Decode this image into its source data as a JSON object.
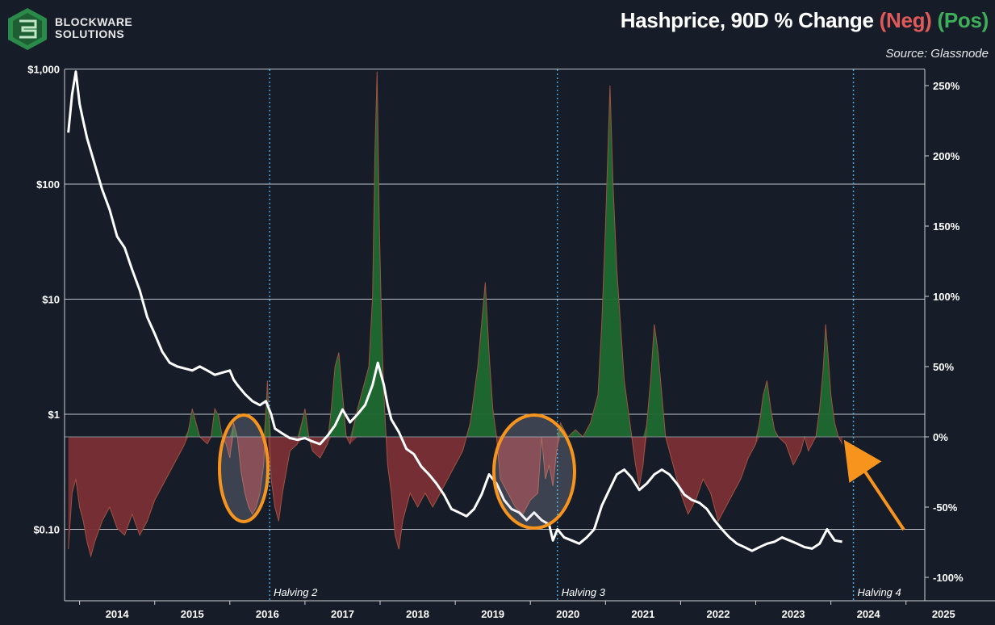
{
  "brand": {
    "line1": "BLOCKWARE",
    "line2": "SOLUTIONS",
    "logo_icon": "blockware-cube-logo-icon",
    "color": "#2a8a4a"
  },
  "header": {
    "title_main": "Hashprice, 90D % Change",
    "title_neg": "(Neg)",
    "title_pos": "(Pos)",
    "subtitle": "Source: Glassnode"
  },
  "colors": {
    "negative": "#e05a5a",
    "positive": "#3fae5a",
    "neg_fill": "#7a2f35",
    "pos_fill": "#1d6a30",
    "price_line": "#ffffff",
    "halving_line": "#3fa9e0",
    "highlight": "#f7941d",
    "background": "#161d29"
  },
  "annotations": {
    "highlight_circles": 2,
    "arrow": "orange-arrow-pointing-to-latest-value"
  },
  "chart_data": {
    "type": "area",
    "title": "Hashprice, 90D % Change (Neg) (Pos)",
    "x_labels": [
      "2014",
      "2015",
      "2016",
      "2017",
      "2018",
      "2019",
      "2020",
      "2021",
      "2022",
      "2023",
      "2024",
      "2025"
    ],
    "xlim": [
      2013.8,
      2025.25
    ],
    "left_axis": {
      "label": "",
      "scale": "log",
      "ticks": [
        "$1,000",
        "$100",
        "$10",
        "$1",
        "$0.10"
      ],
      "tick_values": [
        1000,
        100,
        10,
        1,
        0.1
      ],
      "ylim": [
        0.02,
        1050
      ]
    },
    "right_axis": {
      "label": "",
      "scale": "linear",
      "ticks": [
        "250%",
        "200%",
        "150%",
        "100%",
        "50%",
        "0%",
        "-50%",
        "-100%"
      ],
      "tick_values": [
        250,
        200,
        150,
        100,
        50,
        0,
        -50,
        -100
      ],
      "ylim": [
        -100,
        260
      ]
    },
    "grid": "horizontal",
    "halvings": [
      {
        "label": "Halving 2",
        "x": 2016.53
      },
      {
        "label": "Halving 3",
        "x": 2020.36
      },
      {
        "label": "Halving 4",
        "x": 2024.3
      }
    ],
    "series": [
      {
        "name": "Hashprice",
        "type": "line",
        "axis": "left",
        "points": [
          [
            2013.85,
            280
          ],
          [
            2013.9,
            600
          ],
          [
            2013.95,
            950
          ],
          [
            2014.0,
            500
          ],
          [
            2014.05,
            350
          ],
          [
            2014.1,
            250
          ],
          [
            2014.2,
            150
          ],
          [
            2014.3,
            90
          ],
          [
            2014.4,
            60
          ],
          [
            2014.5,
            35
          ],
          [
            2014.6,
            28
          ],
          [
            2014.7,
            18
          ],
          [
            2014.8,
            12
          ],
          [
            2014.9,
            7
          ],
          [
            2015.0,
            5
          ],
          [
            2015.1,
            3.5
          ],
          [
            2015.2,
            2.8
          ],
          [
            2015.3,
            2.6
          ],
          [
            2015.4,
            2.5
          ],
          [
            2015.5,
            2.4
          ],
          [
            2015.6,
            2.6
          ],
          [
            2015.7,
            2.4
          ],
          [
            2015.8,
            2.2
          ],
          [
            2015.9,
            2.3
          ],
          [
            2016.0,
            2.4
          ],
          [
            2016.05,
            2.0
          ],
          [
            2016.1,
            1.8
          ],
          [
            2016.2,
            1.5
          ],
          [
            2016.3,
            1.3
          ],
          [
            2016.4,
            1.2
          ],
          [
            2016.48,
            1.3
          ],
          [
            2016.55,
            1.0
          ],
          [
            2016.6,
            0.75
          ],
          [
            2016.7,
            0.68
          ],
          [
            2016.8,
            0.62
          ],
          [
            2016.9,
            0.6
          ],
          [
            2017.0,
            0.62
          ],
          [
            2017.1,
            0.58
          ],
          [
            2017.2,
            0.55
          ],
          [
            2017.3,
            0.65
          ],
          [
            2017.4,
            0.8
          ],
          [
            2017.5,
            1.1
          ],
          [
            2017.6,
            0.85
          ],
          [
            2017.7,
            1.0
          ],
          [
            2017.8,
            1.2
          ],
          [
            2017.9,
            1.8
          ],
          [
            2017.97,
            2.8
          ],
          [
            2018.05,
            1.8
          ],
          [
            2018.1,
            1.2
          ],
          [
            2018.15,
            0.9
          ],
          [
            2018.25,
            0.7
          ],
          [
            2018.35,
            0.5
          ],
          [
            2018.45,
            0.45
          ],
          [
            2018.55,
            0.35
          ],
          [
            2018.65,
            0.3
          ],
          [
            2018.75,
            0.25
          ],
          [
            2018.85,
            0.2
          ],
          [
            2018.95,
            0.15
          ],
          [
            2019.05,
            0.14
          ],
          [
            2019.15,
            0.13
          ],
          [
            2019.25,
            0.15
          ],
          [
            2019.35,
            0.2
          ],
          [
            2019.45,
            0.3
          ],
          [
            2019.55,
            0.25
          ],
          [
            2019.65,
            0.18
          ],
          [
            2019.75,
            0.15
          ],
          [
            2019.85,
            0.14
          ],
          [
            2019.95,
            0.12
          ],
          [
            2020.05,
            0.14
          ],
          [
            2020.15,
            0.12
          ],
          [
            2020.25,
            0.11
          ],
          [
            2020.3,
            0.08
          ],
          [
            2020.36,
            0.1
          ],
          [
            2020.45,
            0.085
          ],
          [
            2020.55,
            0.08
          ],
          [
            2020.65,
            0.075
          ],
          [
            2020.75,
            0.085
          ],
          [
            2020.85,
            0.1
          ],
          [
            2020.95,
            0.16
          ],
          [
            2021.05,
            0.22
          ],
          [
            2021.15,
            0.3
          ],
          [
            2021.25,
            0.33
          ],
          [
            2021.35,
            0.28
          ],
          [
            2021.45,
            0.22
          ],
          [
            2021.55,
            0.25
          ],
          [
            2021.65,
            0.3
          ],
          [
            2021.75,
            0.33
          ],
          [
            2021.85,
            0.3
          ],
          [
            2021.95,
            0.25
          ],
          [
            2022.05,
            0.2
          ],
          [
            2022.15,
            0.18
          ],
          [
            2022.25,
            0.17
          ],
          [
            2022.35,
            0.15
          ],
          [
            2022.45,
            0.12
          ],
          [
            2022.55,
            0.1
          ],
          [
            2022.65,
            0.085
          ],
          [
            2022.75,
            0.075
          ],
          [
            2022.85,
            0.07
          ],
          [
            2022.95,
            0.065
          ],
          [
            2023.05,
            0.07
          ],
          [
            2023.15,
            0.075
          ],
          [
            2023.25,
            0.078
          ],
          [
            2023.35,
            0.085
          ],
          [
            2023.45,
            0.08
          ],
          [
            2023.55,
            0.075
          ],
          [
            2023.65,
            0.07
          ],
          [
            2023.75,
            0.068
          ],
          [
            2023.85,
            0.075
          ],
          [
            2023.95,
            0.1
          ],
          [
            2024.05,
            0.08
          ],
          [
            2024.15,
            0.078
          ]
        ]
      },
      {
        "name": "90D % Change",
        "type": "area",
        "axis": "right",
        "points": [
          [
            2013.85,
            -80
          ],
          [
            2013.9,
            -40
          ],
          [
            2013.95,
            -30
          ],
          [
            2014.0,
            -50
          ],
          [
            2014.05,
            -60
          ],
          [
            2014.1,
            -75
          ],
          [
            2014.15,
            -85
          ],
          [
            2014.2,
            -75
          ],
          [
            2014.3,
            -60
          ],
          [
            2014.4,
            -50
          ],
          [
            2014.5,
            -65
          ],
          [
            2014.6,
            -70
          ],
          [
            2014.7,
            -55
          ],
          [
            2014.8,
            -70
          ],
          [
            2014.9,
            -60
          ],
          [
            2015.0,
            -45
          ],
          [
            2015.1,
            -35
          ],
          [
            2015.2,
            -25
          ],
          [
            2015.3,
            -15
          ],
          [
            2015.4,
            -5
          ],
          [
            2015.45,
            5
          ],
          [
            2015.5,
            20
          ],
          [
            2015.55,
            10
          ],
          [
            2015.6,
            0
          ],
          [
            2015.7,
            -5
          ],
          [
            2015.75,
            0
          ],
          [
            2015.8,
            20
          ],
          [
            2015.85,
            15
          ],
          [
            2015.9,
            0
          ],
          [
            2015.95,
            -5
          ],
          [
            2016.0,
            -15
          ],
          [
            2016.05,
            10
          ],
          [
            2016.1,
            0
          ],
          [
            2016.15,
            -25
          ],
          [
            2016.2,
            -40
          ],
          [
            2016.25,
            -50
          ],
          [
            2016.3,
            -55
          ],
          [
            2016.35,
            -50
          ],
          [
            2016.4,
            -40
          ],
          [
            2016.45,
            -20
          ],
          [
            2016.5,
            40
          ],
          [
            2016.55,
            -30
          ],
          [
            2016.6,
            -50
          ],
          [
            2016.65,
            -60
          ],
          [
            2016.7,
            -40
          ],
          [
            2016.75,
            -25
          ],
          [
            2016.8,
            -10
          ],
          [
            2016.9,
            -5
          ],
          [
            2017.0,
            20
          ],
          [
            2017.05,
            0
          ],
          [
            2017.1,
            -10
          ],
          [
            2017.2,
            -15
          ],
          [
            2017.3,
            -5
          ],
          [
            2017.35,
            20
          ],
          [
            2017.4,
            50
          ],
          [
            2017.45,
            60
          ],
          [
            2017.5,
            30
          ],
          [
            2017.55,
            0
          ],
          [
            2017.6,
            -5
          ],
          [
            2017.7,
            20
          ],
          [
            2017.8,
            40
          ],
          [
            2017.85,
            50
          ],
          [
            2017.9,
            100
          ],
          [
            2017.93,
            200
          ],
          [
            2017.96,
            260
          ],
          [
            2017.99,
            150
          ],
          [
            2018.02,
            80
          ],
          [
            2018.05,
            30
          ],
          [
            2018.08,
            0
          ],
          [
            2018.1,
            -20
          ],
          [
            2018.15,
            -40
          ],
          [
            2018.2,
            -70
          ],
          [
            2018.25,
            -80
          ],
          [
            2018.3,
            -60
          ],
          [
            2018.4,
            -40
          ],
          [
            2018.5,
            -50
          ],
          [
            2018.6,
            -40
          ],
          [
            2018.7,
            -50
          ],
          [
            2018.8,
            -40
          ],
          [
            2018.9,
            -30
          ],
          [
            2019.0,
            -20
          ],
          [
            2019.1,
            -10
          ],
          [
            2019.15,
            0
          ],
          [
            2019.2,
            10
          ],
          [
            2019.25,
            30
          ],
          [
            2019.3,
            50
          ],
          [
            2019.35,
            80
          ],
          [
            2019.4,
            110
          ],
          [
            2019.45,
            60
          ],
          [
            2019.5,
            20
          ],
          [
            2019.55,
            0
          ],
          [
            2019.6,
            -30
          ],
          [
            2019.7,
            -40
          ],
          [
            2019.8,
            -50
          ],
          [
            2019.9,
            -55
          ],
          [
            2020.0,
            -45
          ],
          [
            2020.1,
            -40
          ],
          [
            2020.15,
            0
          ],
          [
            2020.2,
            -30
          ],
          [
            2020.25,
            -20
          ],
          [
            2020.3,
            -35
          ],
          [
            2020.35,
            -10
          ],
          [
            2020.4,
            10
          ],
          [
            2020.5,
            0
          ],
          [
            2020.6,
            5
          ],
          [
            2020.7,
            0
          ],
          [
            2020.8,
            10
          ],
          [
            2020.9,
            30
          ],
          [
            2020.95,
            80
          ],
          [
            2021.0,
            150
          ],
          [
            2021.03,
            200
          ],
          [
            2021.06,
            250
          ],
          [
            2021.1,
            180
          ],
          [
            2021.15,
            120
          ],
          [
            2021.2,
            80
          ],
          [
            2021.25,
            40
          ],
          [
            2021.3,
            20
          ],
          [
            2021.35,
            0
          ],
          [
            2021.4,
            -20
          ],
          [
            2021.45,
            -35
          ],
          [
            2021.5,
            -20
          ],
          [
            2021.55,
            10
          ],
          [
            2021.6,
            40
          ],
          [
            2021.65,
            80
          ],
          [
            2021.7,
            60
          ],
          [
            2021.75,
            30
          ],
          [
            2021.8,
            0
          ],
          [
            2021.9,
            -20
          ],
          [
            2022.0,
            -40
          ],
          [
            2022.1,
            -55
          ],
          [
            2022.2,
            -45
          ],
          [
            2022.3,
            -30
          ],
          [
            2022.4,
            -40
          ],
          [
            2022.5,
            -60
          ],
          [
            2022.6,
            -50
          ],
          [
            2022.7,
            -40
          ],
          [
            2022.8,
            -30
          ],
          [
            2022.9,
            -15
          ],
          [
            2023.0,
            -5
          ],
          [
            2023.05,
            10
          ],
          [
            2023.1,
            30
          ],
          [
            2023.15,
            40
          ],
          [
            2023.2,
            20
          ],
          [
            2023.25,
            5
          ],
          [
            2023.3,
            0
          ],
          [
            2023.4,
            -5
          ],
          [
            2023.5,
            -20
          ],
          [
            2023.6,
            -10
          ],
          [
            2023.65,
            0
          ],
          [
            2023.7,
            -10
          ],
          [
            2023.8,
            0
          ],
          [
            2023.85,
            20
          ],
          [
            2023.9,
            50
          ],
          [
            2023.93,
            80
          ],
          [
            2023.96,
            60
          ],
          [
            2024.0,
            30
          ],
          [
            2024.05,
            10
          ],
          [
            2024.1,
            0
          ],
          [
            2024.15,
            -5
          ]
        ]
      }
    ]
  }
}
